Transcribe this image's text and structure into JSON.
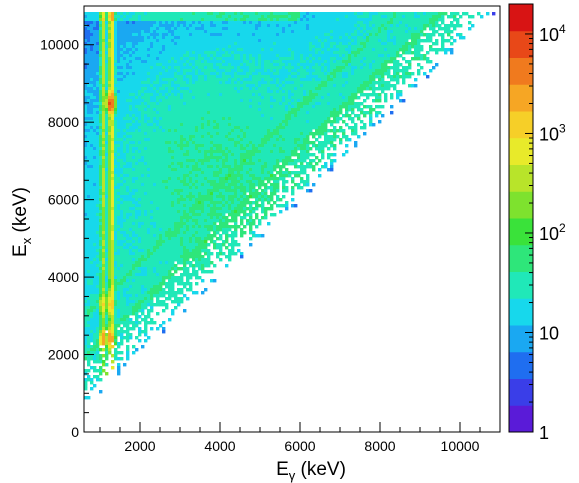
{
  "chart_data": {
    "type": "heatmap",
    "title": "",
    "xlabel": {
      "main": "E",
      "sub": "γ",
      "unit": " (keV)"
    },
    "ylabel": {
      "main": "E",
      "sub": "x",
      "unit": " (keV)"
    },
    "xlim": [
      600,
      11000
    ],
    "ylim": [
      0,
      11000
    ],
    "x_ticks": [
      2000,
      4000,
      6000,
      8000,
      10000
    ],
    "x_tick_labels": [
      "2000",
      "4000",
      "6000",
      "8000",
      "10000"
    ],
    "y_ticks": [
      0,
      2000,
      4000,
      6000,
      8000,
      10000
    ],
    "y_tick_labels": [
      "0",
      "2000",
      "4000",
      "6000",
      "8000",
      "10000"
    ],
    "z_scale": "log",
    "z_range": [
      1,
      20000
    ],
    "colorbar_labels": [
      {
        "value": 1,
        "base": "1",
        "exp": ""
      },
      {
        "value": 10,
        "base": "10",
        "exp": ""
      },
      {
        "value": 100,
        "base": "10",
        "exp": "2"
      },
      {
        "value": 1000,
        "base": "10",
        "exp": "3"
      },
      {
        "value": 10000,
        "base": "10",
        "exp": "4"
      }
    ],
    "colors": [
      "#5a1bd8",
      "#3a3ee8",
      "#1f6ef0",
      "#1aa8f2",
      "#17d8ec",
      "#20e8b8",
      "#2ee67a",
      "#3ae23a",
      "#7ee22e",
      "#b8e42a",
      "#e8ea2a",
      "#f6cf28",
      "#f6a624",
      "#f07a1e",
      "#e84818",
      "#d81414"
    ],
    "grid": false,
    "legend": "none",
    "features": {
      "diagonal_limit": "Ex = Eγ",
      "vertical_lines_Eγ": [
        1080,
        1290
      ],
      "hotspots": [
        {
          "x": 1270,
          "y": 1300,
          "z": 20000
        },
        {
          "x": 1270,
          "y": 2400,
          "z": 3000
        },
        {
          "x": 1080,
          "y": 2400,
          "z": 2000
        },
        {
          "x": 1270,
          "y": 3300,
          "z": 1200
        },
        {
          "x": 1080,
          "y": 3300,
          "z": 800
        },
        {
          "x": 1270,
          "y": 8500,
          "z": 8000
        }
      ],
      "parallel_bands_offsets": [
        1300,
        2400
      ]
    }
  }
}
